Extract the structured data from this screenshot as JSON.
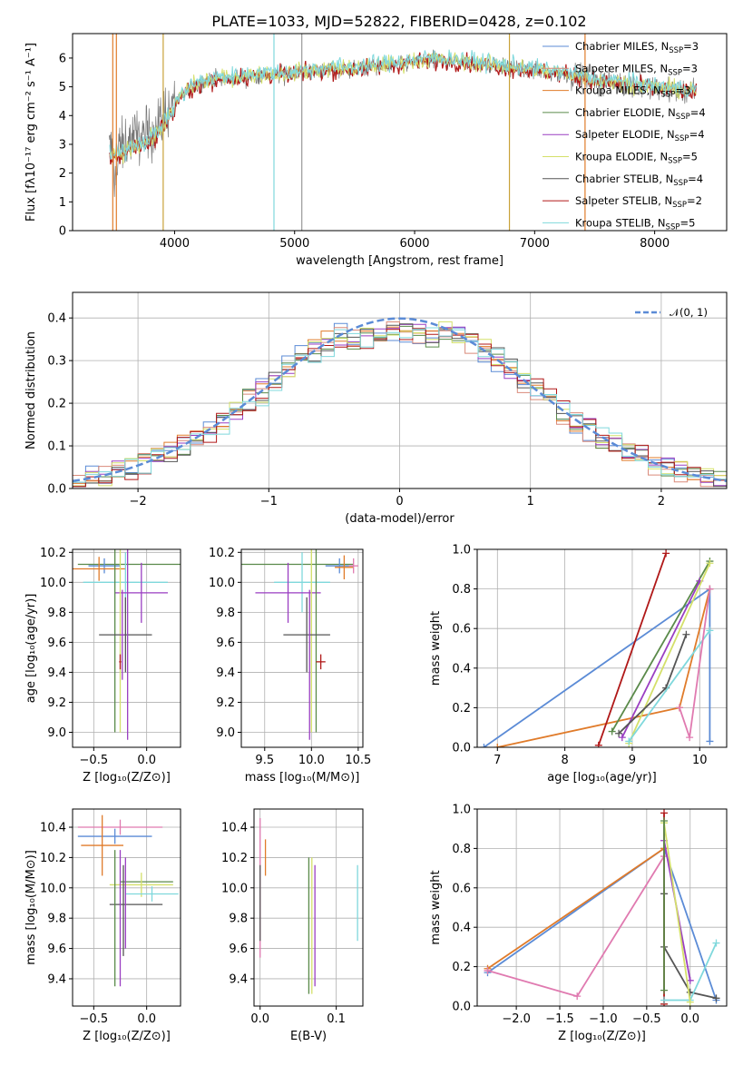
{
  "title": "PLATE=1033, MJD=52822, FIBERID=0428, z=0.102",
  "colors": {
    "Chabrier MILES": "#5b8bd6",
    "Salpeter MILES": "#d98a7a",
    "Kroupa MILES": "#e07b2a",
    "Chabrier ELODIE": "#5a8a4a",
    "Salpeter ELODIE": "#9a3ec2",
    "Kroupa ELODIE": "#d4e06a",
    "Chabrier STELIB": "#555555",
    "Salpeter STELIB": "#b01818",
    "Kroupa STELIB": "#7fd8dc",
    "pink": "#e07ab0",
    "grid": "#b0b0b0"
  },
  "chart_data": [
    {
      "id": "spectrum",
      "type": "line",
      "xlabel": "wavelength [Angstrom, rest frame]",
      "ylabel": "Flux [fλ10⁻¹⁷ erg cm⁻² s⁻¹ A⁻¹]",
      "xlim": [
        3150,
        8600
      ],
      "ylim": [
        0,
        6.85
      ],
      "xticks": [
        4000,
        5000,
        6000,
        7000,
        8000
      ],
      "yticks": [
        0,
        1,
        2,
        3,
        4,
        5,
        6
      ],
      "grid": false,
      "legend_placement": "right",
      "legend": [
        {
          "label": "Chabrier MILES, N",
          "sub": "SSP",
          "suffix": "=3"
        },
        {
          "label": "Salpeter MILES, N",
          "sub": "SSP",
          "suffix": "=3"
        },
        {
          "label": "Kroupa MILES, N",
          "sub": "SSP",
          "suffix": "=3"
        },
        {
          "label": "Chabrier ELODIE, N",
          "sub": "SSP",
          "suffix": "=4"
        },
        {
          "label": "Salpeter ELODIE, N",
          "sub": "SSP",
          "suffix": "=4"
        },
        {
          "label": "Kroupa ELODIE, N",
          "sub": "SSP",
          "suffix": "=5"
        },
        {
          "label": "Chabrier STELIB, N",
          "sub": "SSP",
          "suffix": "=4"
        },
        {
          "label": "Salpeter STELIB, N",
          "sub": "SSP",
          "suffix": "=2"
        },
        {
          "label": "Kroupa STELIB, N",
          "sub": "SSP",
          "suffix": "=5"
        }
      ],
      "continuum": {
        "x": [
          3450,
          3550,
          3650,
          3750,
          3850,
          3950,
          4050,
          4150,
          4300,
          4500,
          4700,
          4900,
          5100,
          5300,
          5500,
          5700,
          5900,
          6100,
          6300,
          6500,
          6700,
          6900,
          7100,
          7300,
          7500,
          7700,
          7900,
          8100,
          8350
        ],
        "y": [
          2.8,
          2.9,
          3.2,
          3.3,
          3.6,
          4.2,
          4.6,
          5.0,
          5.2,
          5.3,
          5.4,
          5.4,
          5.5,
          5.6,
          5.6,
          5.7,
          5.8,
          5.9,
          5.9,
          5.8,
          5.7,
          5.6,
          5.5,
          5.4,
          5.2,
          5.1,
          5.0,
          4.9,
          4.8
        ]
      }
    },
    {
      "id": "residuals",
      "type": "bar",
      "xlabel": "(data-model)/error",
      "ylabel": "Normed distribution",
      "xlim": [
        -2.5,
        2.5
      ],
      "ylim": [
        0,
        0.46
      ],
      "xticks": [
        -2,
        -1,
        0,
        1,
        2
      ],
      "yticks": [
        0.0,
        0.1,
        0.2,
        0.3,
        0.4
      ],
      "grid": true,
      "legend_placement": "top-right",
      "legend": [
        "𝒩(0, 1)"
      ]
    },
    {
      "id": "age-vs-Z",
      "type": "scatter",
      "xlabel": "Z [log₁₀(Z/Z⊙)]",
      "ylabel": "age  [log₁₀(age/yr)]",
      "xlim": [
        -0.7,
        0.32
      ],
      "ylim": [
        8.9,
        10.22
      ],
      "xticks": [
        -0.5,
        0.0
      ],
      "yticks": [
        9.0,
        9.2,
        9.4,
        9.6,
        9.8,
        10.0,
        10.2
      ]
    },
    {
      "id": "age-vs-mass",
      "type": "scatter",
      "xlabel": "mass [log₁₀(M/M⊙)]",
      "ylabel": "",
      "xlim": [
        9.25,
        10.55
      ],
      "ylim": [
        8.9,
        10.22
      ],
      "xticks": [
        9.5,
        10.0,
        10.5
      ],
      "yticks": [
        9.0,
        9.2,
        9.4,
        9.6,
        9.8,
        10.0,
        10.2
      ]
    },
    {
      "id": "weight-vs-age",
      "type": "line",
      "xlabel": "age  [log₁₀(age/yr)]",
      "ylabel": "mass weight",
      "xlim": [
        6.7,
        10.4
      ],
      "ylim": [
        0,
        1.0
      ],
      "xticks": [
        7,
        8,
        9,
        10
      ],
      "yticks": [
        0.0,
        0.2,
        0.4,
        0.6,
        0.8,
        1.0
      ],
      "series": [
        {
          "name": "Chabrier MILES",
          "x": [
            6.8,
            10.15,
            10.15
          ],
          "y": [
            0.0,
            0.8,
            0.03
          ]
        },
        {
          "name": "Kroupa MILES",
          "x": [
            7.0,
            9.7,
            10.15
          ],
          "y": [
            0.0,
            0.2,
            0.8
          ]
        },
        {
          "name": "Chabrier ELODIE",
          "x": [
            8.7,
            10.15
          ],
          "y": [
            0.08,
            0.94
          ]
        },
        {
          "name": "Salpeter ELODIE",
          "x": [
            8.85,
            10.0
          ],
          "y": [
            0.05,
            0.84
          ]
        },
        {
          "name": "Kroupa ELODIE",
          "x": [
            8.95,
            10.15
          ],
          "y": [
            0.02,
            0.93
          ]
        },
        {
          "name": "Chabrier STELIB",
          "x": [
            8.8,
            9.5,
            9.8
          ],
          "y": [
            0.07,
            0.3,
            0.57
          ]
        },
        {
          "name": "Salpeter STELIB",
          "x": [
            8.5,
            9.5
          ],
          "y": [
            0.01,
            0.98
          ]
        },
        {
          "name": "Kroupa STELIB",
          "x": [
            8.95,
            10.15
          ],
          "y": [
            0.03,
            0.59
          ]
        },
        {
          "name": "Salpeter MILES",
          "x": [
            9.7,
            9.85,
            10.15
          ],
          "y": [
            0.2,
            0.05,
            0.8
          ]
        }
      ]
    },
    {
      "id": "mass-vs-Z",
      "type": "scatter",
      "xlabel": "Z [log₁₀(Z/Z⊙)]",
      "ylabel": "mass [log₁₀(M/M⊙)]",
      "xlim": [
        -0.7,
        0.32
      ],
      "ylim": [
        9.22,
        10.52
      ],
      "xticks": [
        -0.5,
        0.0
      ],
      "yticks": [
        9.4,
        9.6,
        9.8,
        10.0,
        10.2,
        10.4
      ]
    },
    {
      "id": "mass-vs-EBV",
      "type": "scatter",
      "xlabel": "E(B-V)",
      "ylabel": "",
      "xlim": [
        -0.008,
        0.135
      ],
      "ylim": [
        9.22,
        10.52
      ],
      "xticks": [
        0.0,
        0.1
      ],
      "yticks": [
        9.4,
        9.6,
        9.8,
        10.0,
        10.2,
        10.4
      ]
    },
    {
      "id": "weight-vs-Z",
      "type": "line",
      "xlabel": "Z [log₁₀(Z/Z⊙)]",
      "ylabel": "mass weight",
      "xlim": [
        -2.45,
        0.42
      ],
      "ylim": [
        0,
        1.0
      ],
      "xticks": [
        -2.0,
        -1.5,
        -1.0,
        -0.5,
        0.0
      ],
      "yticks": [
        0.0,
        0.2,
        0.4,
        0.6,
        0.8,
        1.0
      ],
      "series": [
        {
          "name": "Chabrier MILES",
          "x": [
            -2.33,
            -0.3,
            0.3
          ],
          "y": [
            0.17,
            0.8,
            0.03
          ]
        },
        {
          "name": "Kroupa MILES",
          "x": [
            -2.33,
            -0.3
          ],
          "y": [
            0.19,
            0.8
          ]
        },
        {
          "name": "Salpeter MILES",
          "x": [
            -2.33,
            -1.3,
            -0.3
          ],
          "y": [
            0.18,
            0.05,
            0.76
          ]
        },
        {
          "name": "Chabrier STELIB",
          "x": [
            -0.3,
            -0.3,
            0.0,
            0.3
          ],
          "y": [
            0.57,
            0.3,
            0.07,
            0.04
          ]
        },
        {
          "name": "Salpeter STELIB",
          "x": [
            -0.3,
            -0.3
          ],
          "y": [
            0.98,
            0.01
          ]
        },
        {
          "name": "Kroupa STELIB",
          "x": [
            -0.3,
            0.0,
            0.3
          ],
          "y": [
            0.03,
            0.03,
            0.32
          ]
        },
        {
          "name": "Salpeter ELODIE",
          "x": [
            -0.3,
            0.0
          ],
          "y": [
            0.84,
            0.13
          ]
        },
        {
          "name": "Kroupa ELODIE",
          "x": [
            -0.3,
            0.0
          ],
          "y": [
            0.93,
            0.02
          ]
        },
        {
          "name": "Chabrier ELODIE",
          "x": [
            -0.3,
            -0.3
          ],
          "y": [
            0.94,
            0.08
          ]
        }
      ]
    }
  ]
}
